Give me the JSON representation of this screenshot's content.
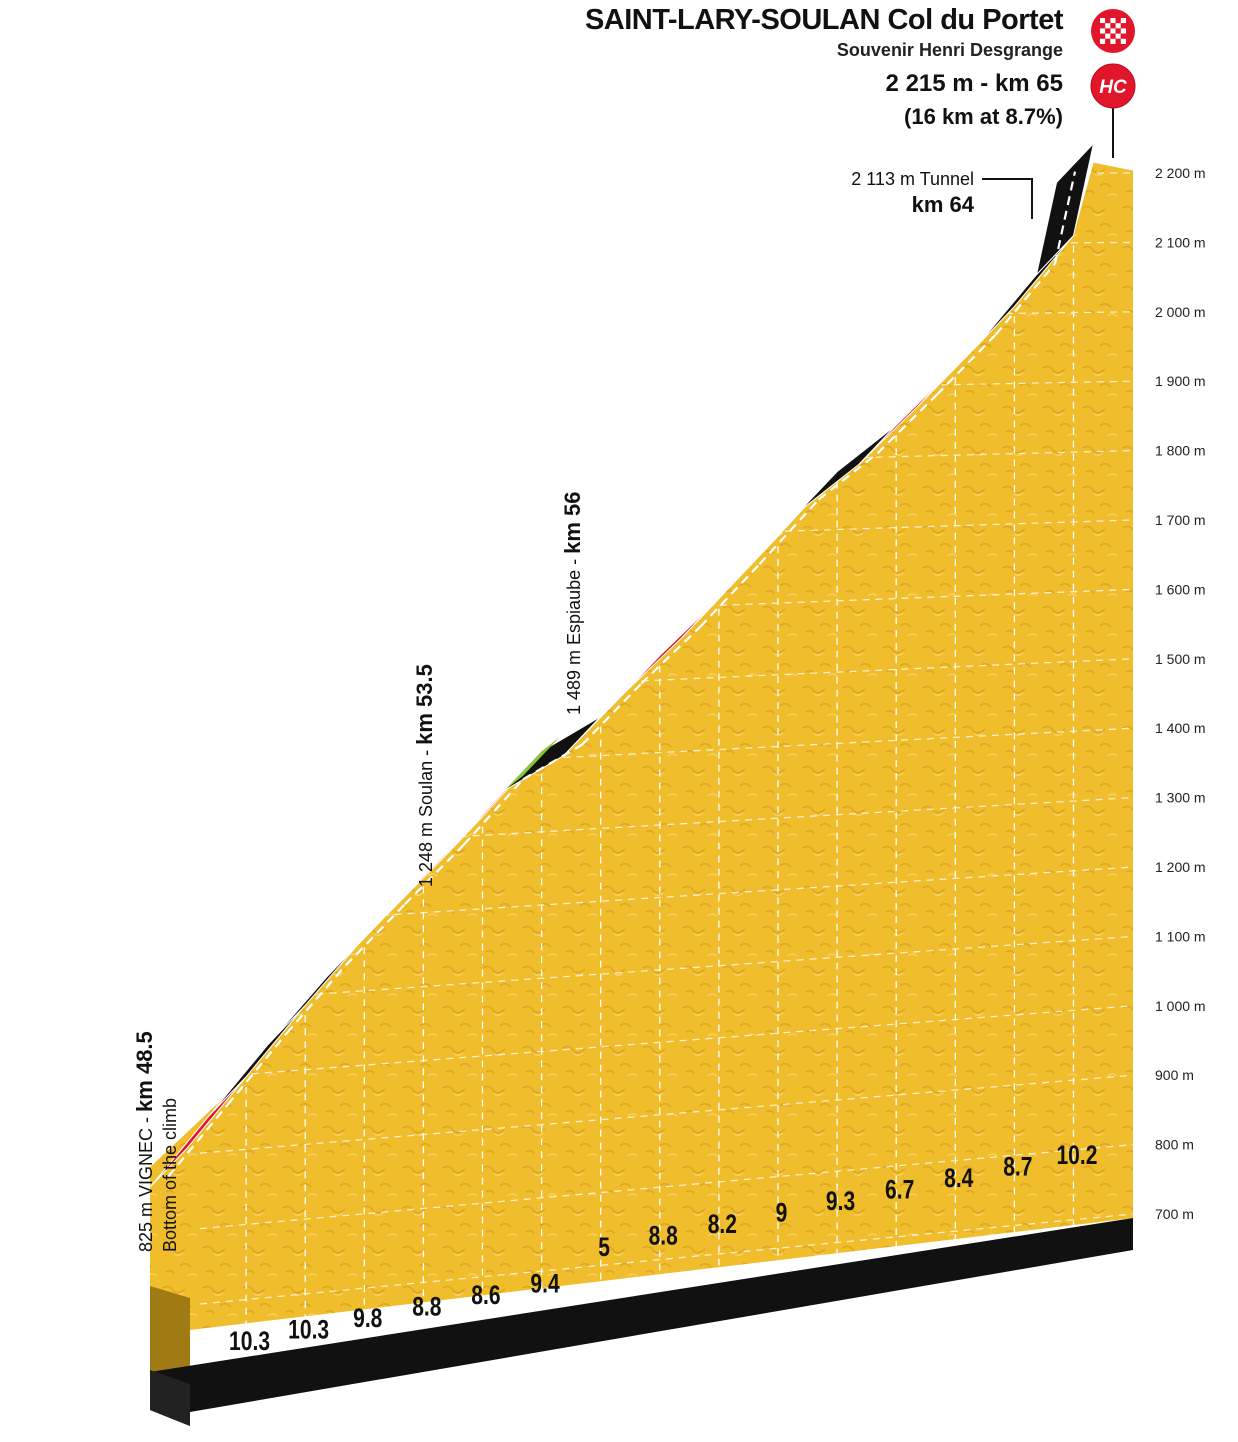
{
  "header": {
    "title": "SAINT-LARY-SOULAN Col du Portet",
    "subtitle": "Souvenir Henri Desgrange",
    "summit_altitude": "2 215 m - km 65",
    "summit_gradient": "(16 km at 8.7%)",
    "category_badge": "HC",
    "finish_icon": "checkered-flag-icon"
  },
  "colors": {
    "terrain": "#f2c230",
    "terrain_dark": "#a07a12",
    "segment_black": "#111111",
    "segment_red": "#e2162b",
    "segment_green": "#8cc43c",
    "badge_red": "#e2162b"
  },
  "annotations": {
    "bottom": {
      "line1": "825 m VIGNEC - ",
      "line1_bold": "km 48.5",
      "line2": "Bottom of the climb"
    },
    "soulan": {
      "text": "1 248 m Soulan - ",
      "bold": "km 53.5"
    },
    "espiaube": {
      "text": "1 489 m Espiaube - ",
      "bold": "km 56"
    },
    "tunnel": {
      "text": "2 113 m Tunnel",
      "bold": "km 64"
    }
  },
  "chart_data": {
    "type": "area",
    "title": "SAINT-LARY-SOULAN Col du Portet",
    "xlabel": "",
    "ylabel": "",
    "ylim": [
      700,
      2200
    ],
    "y_ticks": [
      "700 m",
      "800 m",
      "900 m",
      "1 000 m",
      "1 100 m",
      "1 200 m",
      "1 300 m",
      "1 400 m",
      "1 500 m",
      "1 600 m",
      "1 700 m",
      "1 800 m",
      "1 900 m",
      "2 000 m",
      "2 100 m",
      "2 200 m"
    ],
    "y_tick_values": [
      700,
      800,
      900,
      1000,
      1100,
      1200,
      1300,
      1400,
      1500,
      1600,
      1700,
      1800,
      1900,
      2000,
      2100,
      2200
    ],
    "km_markers": [
      "1",
      "2",
      "3",
      "4",
      "5",
      "6",
      "7",
      "8",
      "9",
      "10",
      "11",
      "12",
      "13",
      "14",
      "15"
    ],
    "segments": [
      {
        "km": 1,
        "gradient": "10.3",
        "start_alt": 825,
        "end_alt": 928,
        "color": "red"
      },
      {
        "km": 2,
        "gradient": "10.3",
        "start_alt": 928,
        "end_alt": 1031,
        "color": "black"
      },
      {
        "km": 3,
        "gradient": "9.8",
        "start_alt": 1031,
        "end_alt": 1129,
        "color": "black"
      },
      {
        "km": 4,
        "gradient": "8.8",
        "start_alt": 1129,
        "end_alt": 1217,
        "color": "black"
      },
      {
        "km": 5,
        "gradient": "8.6",
        "start_alt": 1217,
        "end_alt": 1303,
        "color": "red"
      },
      {
        "km": 6,
        "gradient": "9.4",
        "start_alt": 1303,
        "end_alt": 1397,
        "color": "red"
      },
      {
        "km": 7,
        "gradient": "5",
        "start_alt": 1397,
        "end_alt": 1447,
        "color": "black",
        "accent": "green"
      },
      {
        "km": 8,
        "gradient": "8.8",
        "start_alt": 1447,
        "end_alt": 1535,
        "color": "red"
      },
      {
        "km": 9,
        "gradient": "8.2",
        "start_alt": 1535,
        "end_alt": 1617,
        "color": "red"
      },
      {
        "km": 10,
        "gradient": "9",
        "start_alt": 1617,
        "end_alt": 1707,
        "color": "red"
      },
      {
        "km": 11,
        "gradient": "9.3",
        "start_alt": 1707,
        "end_alt": 1800,
        "color": "black"
      },
      {
        "km": 12,
        "gradient": "6.7",
        "start_alt": 1800,
        "end_alt": 1867,
        "color": "black"
      },
      {
        "km": 13,
        "gradient": "8.4",
        "start_alt": 1867,
        "end_alt": 1951,
        "color": "red"
      },
      {
        "km": 14,
        "gradient": "8.7",
        "start_alt": 1951,
        "end_alt": 2038,
        "color": "red"
      },
      {
        "km": 15,
        "gradient": "10.2",
        "start_alt": 2038,
        "end_alt": 2140,
        "color": "black"
      }
    ],
    "final_segment": {
      "start_alt": 2140,
      "end_alt": 2215,
      "color": "black"
    },
    "summit": {
      "altitude_m": 2215,
      "km": 65
    }
  }
}
